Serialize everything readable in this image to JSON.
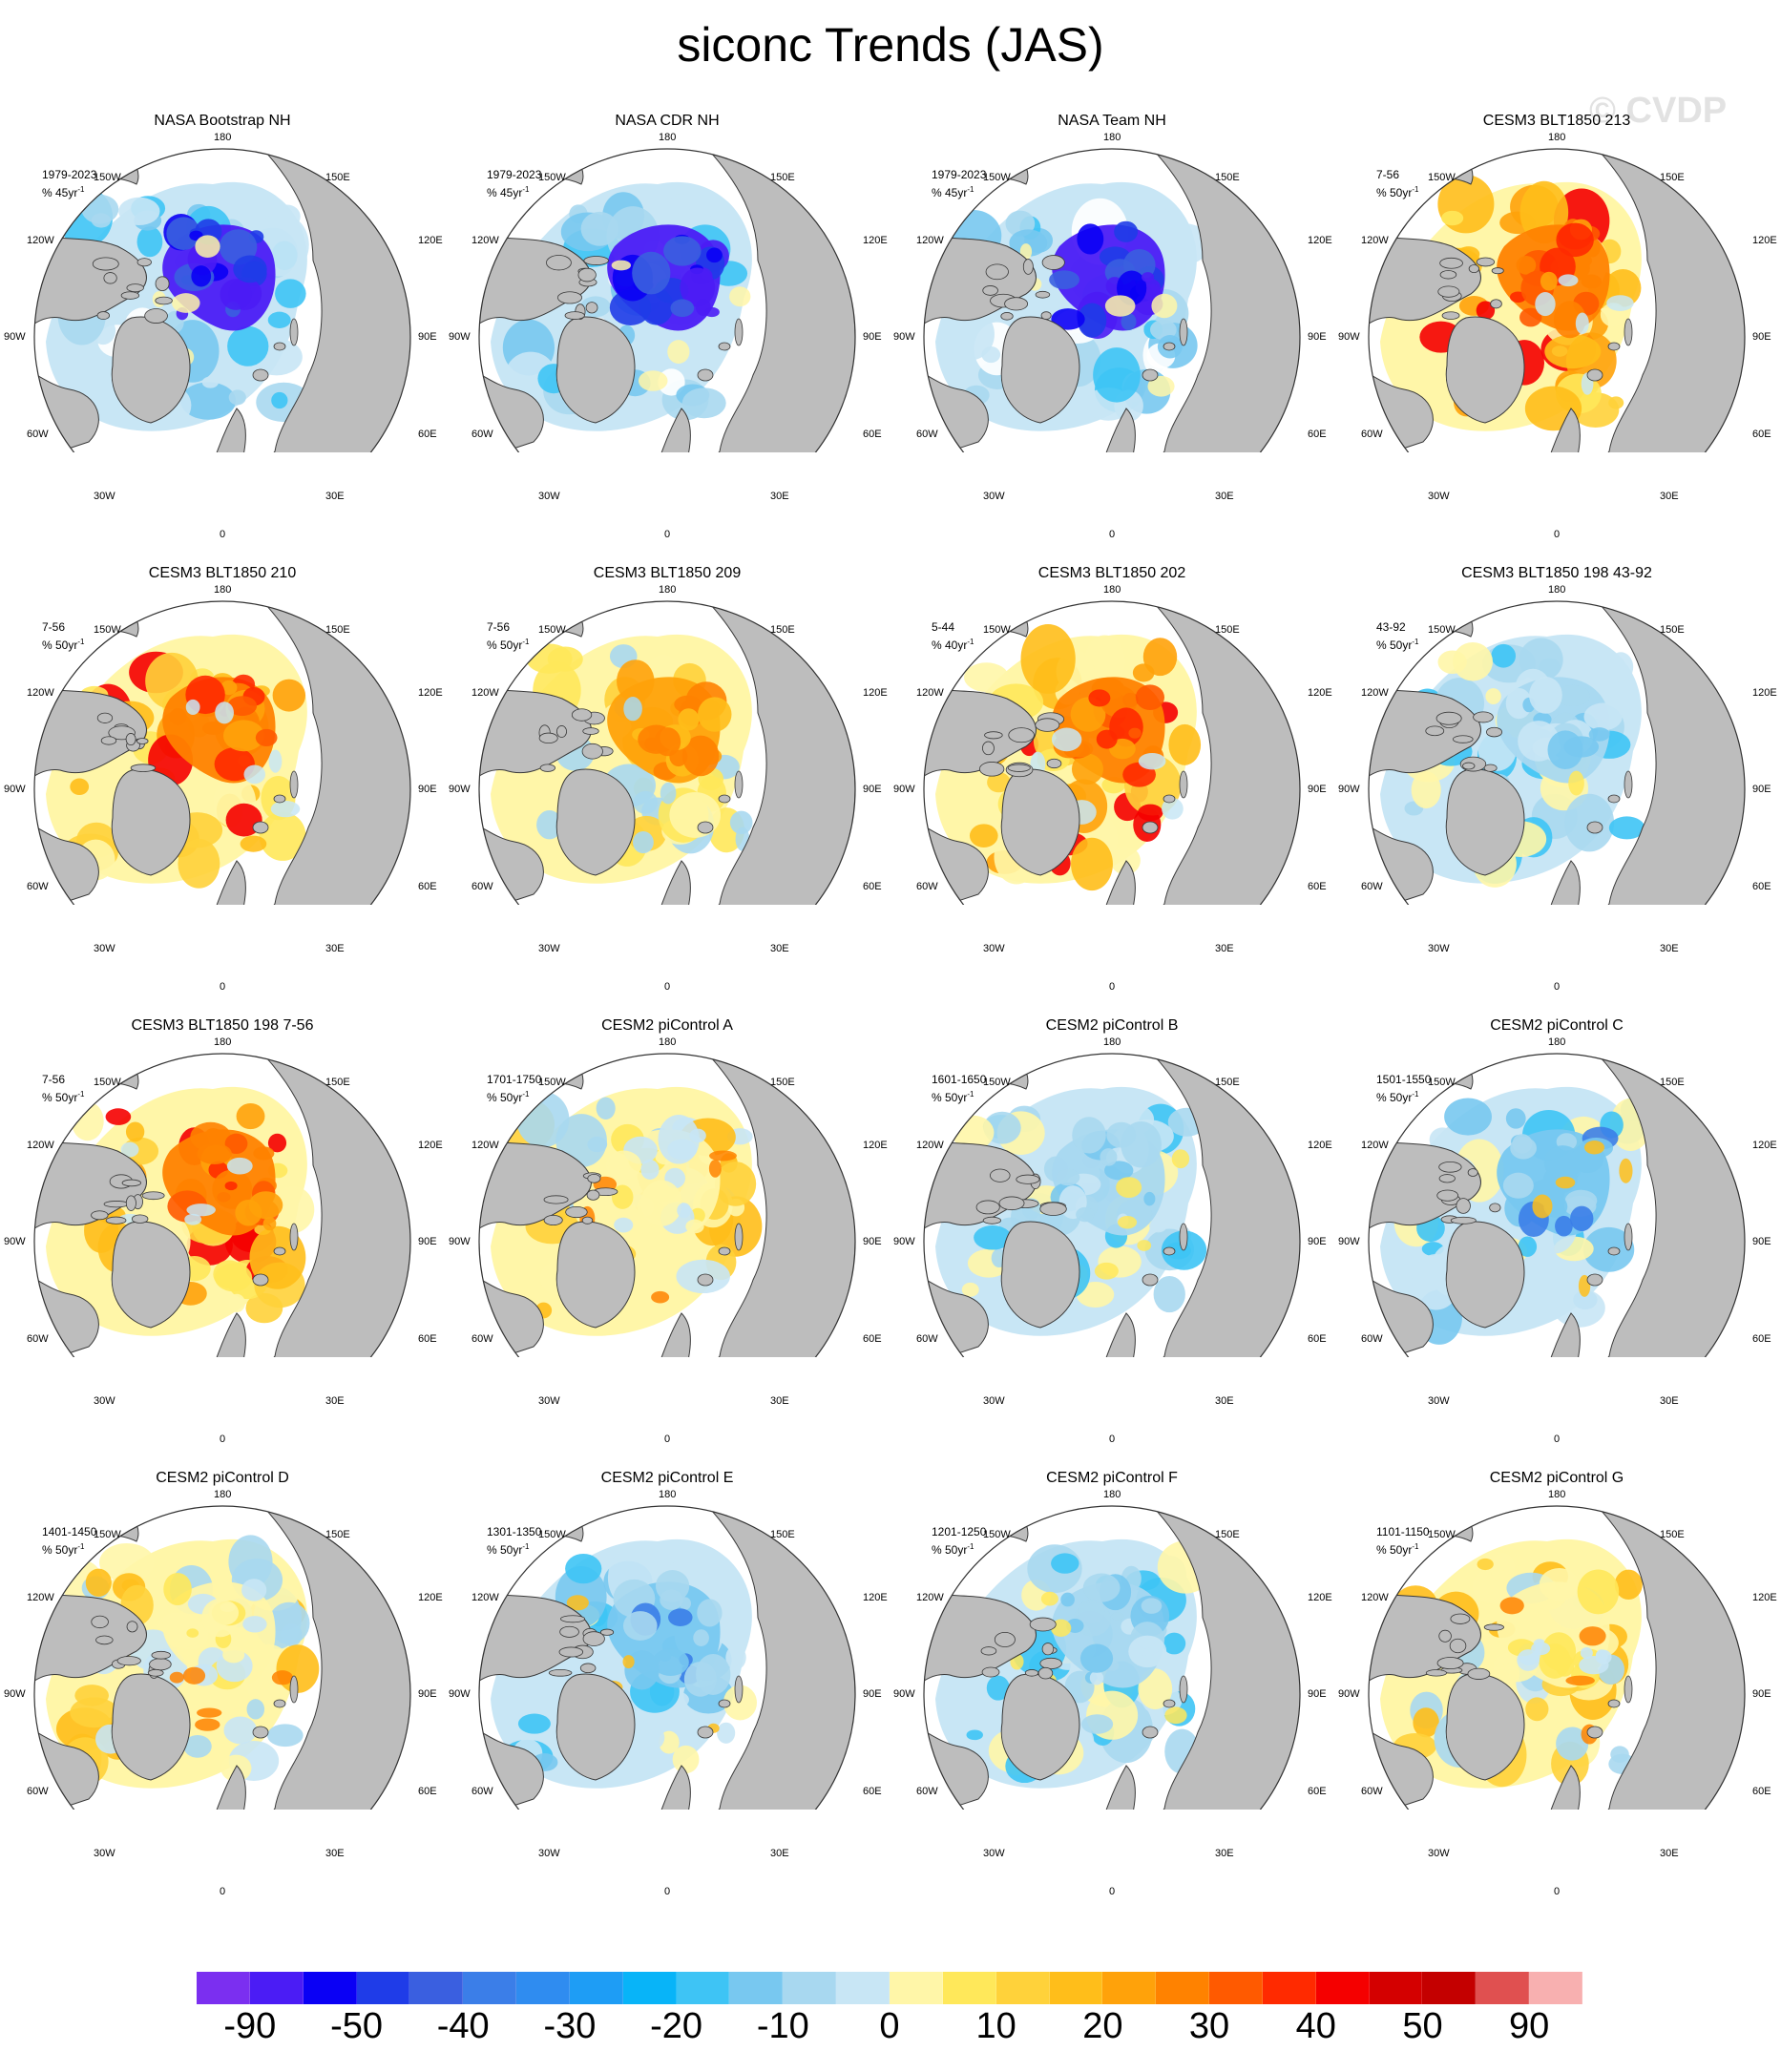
{
  "title": "siconc Trends (JAS)",
  "watermark": "© CVDP",
  "lon_labels": {
    "top": "180",
    "bottom": "0",
    "lw150": "150W",
    "le150": "150E",
    "lw120": "120W",
    "le120": "120E",
    "lw90": "90W",
    "le90": "90E",
    "lw60": "60W",
    "le60": "60E",
    "lw30": "30W",
    "le30": "30E"
  },
  "panels": [
    {
      "title": "NASA Bootstrap NH",
      "period": "1979-2023",
      "units_base": "% 45yr",
      "units_exp": "-1",
      "pattern": "obs"
    },
    {
      "title": "NASA CDR NH",
      "period": "1979-2023",
      "units_base": "% 45yr",
      "units_exp": "-1",
      "pattern": "obs"
    },
    {
      "title": "NASA Team NH",
      "period": "1979-2023",
      "units_base": "% 45yr",
      "units_exp": "-1",
      "pattern": "obs"
    },
    {
      "title": "CESM3 BLT1850 213",
      "period": "7-56",
      "units_base": "% 50yr",
      "units_exp": "-1",
      "pattern": "warm-strong"
    },
    {
      "title": "CESM3 BLT1850 210",
      "period": "7-56",
      "units_base": "% 50yr",
      "units_exp": "-1",
      "pattern": "warm-strong"
    },
    {
      "title": "CESM3 BLT1850 209",
      "period": "7-56",
      "units_base": "% 50yr",
      "units_exp": "-1",
      "pattern": "warm-moderate"
    },
    {
      "title": "CESM3 BLT1850 202",
      "period": "5-44",
      "units_base": "% 40yr",
      "units_exp": "-1",
      "pattern": "warm-strong"
    },
    {
      "title": "CESM3 BLT1850 198 43-92",
      "period": "43-92",
      "units_base": "% 50yr",
      "units_exp": "-1",
      "pattern": "cool-mild"
    },
    {
      "title": "CESM3 BLT1850 198 7-56",
      "period": "7-56",
      "units_base": "% 50yr",
      "units_exp": "-1",
      "pattern": "warm-strong"
    },
    {
      "title": "CESM2 piControl A",
      "period": "1701-1750",
      "units_base": "% 50yr",
      "units_exp": "-1",
      "pattern": "mixed-warm"
    },
    {
      "title": "CESM2 piControl B",
      "period": "1601-1650",
      "units_base": "% 50yr",
      "units_exp": "-1",
      "pattern": "cool-mild"
    },
    {
      "title": "CESM2 piControl C",
      "period": "1501-1550",
      "units_base": "% 50yr",
      "units_exp": "-1",
      "pattern": "cool-moderate"
    },
    {
      "title": "CESM2 piControl D",
      "period": "1401-1450",
      "units_base": "% 50yr",
      "units_exp": "-1",
      "pattern": "mixed-warm"
    },
    {
      "title": "CESM2 piControl E",
      "period": "1301-1350",
      "units_base": "% 50yr",
      "units_exp": "-1",
      "pattern": "cool-moderate"
    },
    {
      "title": "CESM2 piControl F",
      "period": "1201-1250",
      "units_base": "% 50yr",
      "units_exp": "-1",
      "pattern": "cool-mild"
    },
    {
      "title": "CESM2 piControl G",
      "period": "1101-1150",
      "units_base": "% 50yr",
      "units_exp": "-1",
      "pattern": "mixed-warm"
    }
  ],
  "colorbar": {
    "colors": [
      "#7b2ff0",
      "#4b1cf5",
      "#0a00f5",
      "#1f3ce8",
      "#3a5fe0",
      "#3b7ee8",
      "#2f8cf0",
      "#1e9df5",
      "#08b4f8",
      "#3ec4f5",
      "#78c8f0",
      "#a8d8f0",
      "#c8e6f5",
      "#fff6a8",
      "#ffe85a",
      "#ffd23a",
      "#ffbe1a",
      "#ffa20a",
      "#ff8200",
      "#ff5a00",
      "#ff2a00",
      "#f50000",
      "#d40000",
      "#c40000",
      "#e05050",
      "#f8b0b0"
    ],
    "labels": [
      "-90",
      "-50",
      "-40",
      "-30",
      "-20",
      "-10",
      "0",
      "10",
      "20",
      "30",
      "40",
      "50",
      "90"
    ]
  }
}
